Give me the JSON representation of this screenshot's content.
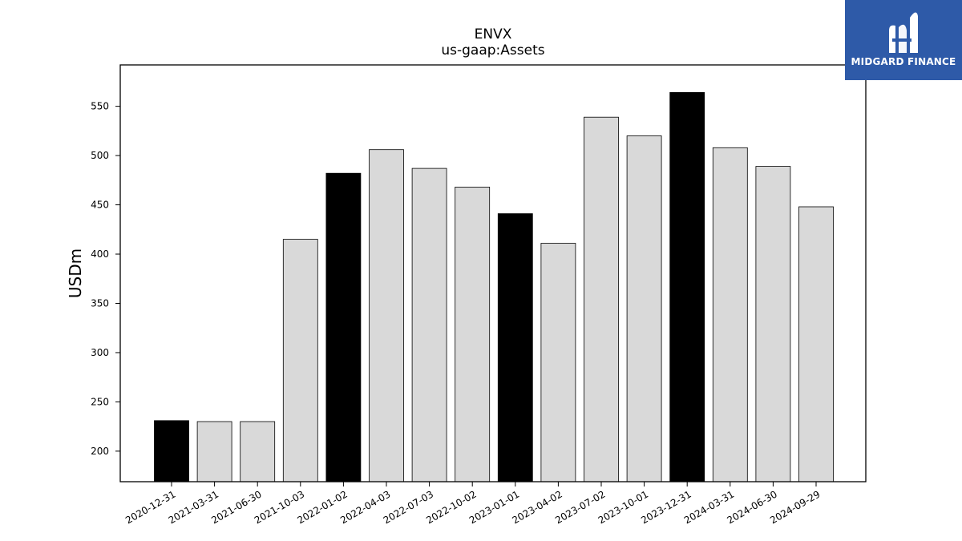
{
  "chart_data": {
    "type": "bar",
    "title": "ENVX",
    "subtitle": "us-gaap:Assets",
    "xlabel": "",
    "ylabel": "USDm",
    "ylim": [
      169,
      592
    ],
    "yticks": [
      200,
      250,
      300,
      350,
      400,
      450,
      500,
      550
    ],
    "categories": [
      "2020-12-31",
      "2021-03-31",
      "2021-06-30",
      "2021-10-03",
      "2022-01-02",
      "2022-04-03",
      "2022-07-03",
      "2022-10-02",
      "2023-01-01",
      "2023-04-02",
      "2023-07-02",
      "2023-10-01",
      "2023-12-31",
      "2024-03-31",
      "2024-06-30",
      "2024-09-29"
    ],
    "values": [
      231,
      230,
      230,
      415,
      482,
      506,
      487,
      468,
      441,
      411,
      539,
      520,
      564,
      508,
      489,
      448
    ],
    "highlighted": [
      true,
      false,
      false,
      false,
      true,
      false,
      false,
      false,
      true,
      false,
      false,
      false,
      true,
      false,
      false,
      false
    ],
    "colors": {
      "highlight": "#000000",
      "normal": "#d9d9d9",
      "edge": "#000000"
    },
    "grid": false
  },
  "logo": {
    "text": "MIDGARD FINANCE",
    "icon": "midgard-logo-icon",
    "background": "#2e5aa8"
  }
}
